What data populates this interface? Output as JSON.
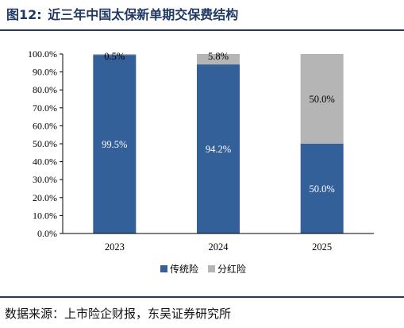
{
  "figure": {
    "label": "图12:",
    "title": "近三年中国太保新单期交保费结构"
  },
  "source": "数据来源：上市险企财报，东吴证券研究所",
  "colors": {
    "series_traditional": "#34609a",
    "series_participating": "#b5b5b5",
    "title": "#1f3864"
  },
  "chart_data": {
    "type": "bar",
    "stacked": true,
    "categories": [
      "2023",
      "2024",
      "2025"
    ],
    "series": [
      {
        "name": "传统险",
        "values": [
          99.5,
          94.2,
          50.0
        ],
        "labels": [
          "99.5%",
          "94.2%",
          "50.0%"
        ],
        "color": "#34609a",
        "label_color": "#ffffff"
      },
      {
        "name": "分红险",
        "values": [
          0.5,
          5.8,
          50.0
        ],
        "labels": [
          "0.5%",
          "5.8%",
          "50.0%"
        ],
        "color": "#b5b5b5",
        "label_color": "#000000"
      }
    ],
    "ylim": [
      0,
      100
    ],
    "yticks": [
      "0.0%",
      "10.0%",
      "20.0%",
      "30.0%",
      "40.0%",
      "50.0%",
      "60.0%",
      "70.0%",
      "80.0%",
      "90.0%",
      "100.0%"
    ],
    "xlabel": "",
    "ylabel": "",
    "grid": false,
    "legend_position": "bottom"
  }
}
